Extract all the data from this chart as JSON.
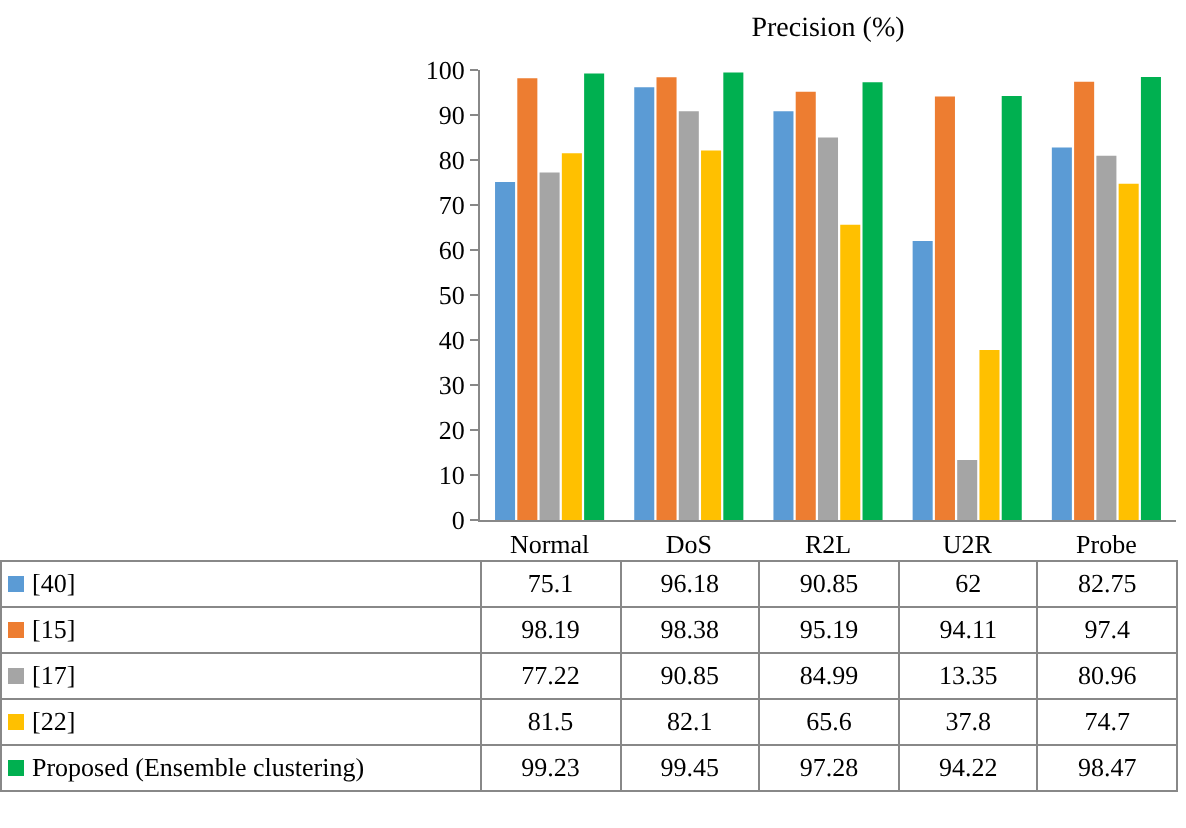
{
  "chart_data": {
    "type": "bar",
    "title": "Precision (%)",
    "categories": [
      "Normal",
      "DoS",
      "R2L",
      "U2R",
      "Probe"
    ],
    "series": [
      {
        "name": "[40]",
        "color": "#5b9bd5",
        "values": [
          75.1,
          96.18,
          90.85,
          62,
          82.75
        ]
      },
      {
        "name": "[15]",
        "color": "#ed7d31",
        "values": [
          98.19,
          98.38,
          95.19,
          94.11,
          97.4
        ]
      },
      {
        "name": "[17]",
        "color": "#a5a5a5",
        "values": [
          77.22,
          90.85,
          84.99,
          13.35,
          80.96
        ]
      },
      {
        "name": "[22]",
        "color": "#ffc000",
        "values": [
          81.5,
          82.1,
          65.6,
          37.8,
          74.7
        ]
      },
      {
        "name": "Proposed (Ensemble clustering)",
        "color": "#00b050",
        "values": [
          99.23,
          99.45,
          97.28,
          94.22,
          98.47
        ]
      }
    ],
    "ylim": [
      0,
      100
    ],
    "yticks": [
      0,
      10,
      20,
      30,
      40,
      50,
      60,
      70,
      80,
      90,
      100
    ],
    "data_labels": true,
    "legend": "bottom"
  }
}
